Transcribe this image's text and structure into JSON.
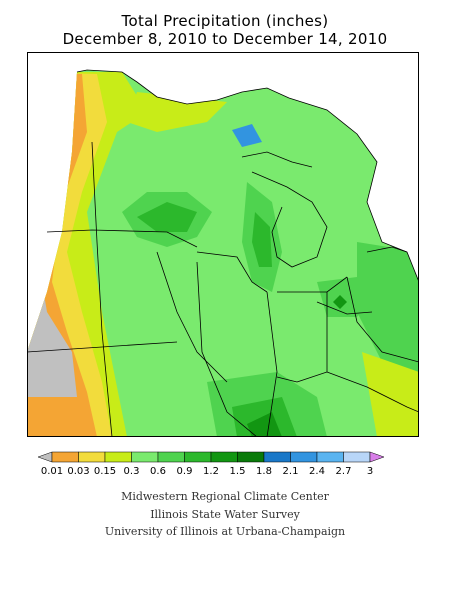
{
  "title": "Total Precipitation (inches)",
  "subtitle": "December 8, 2010 to December 14, 2010",
  "legend": {
    "bins": [
      {
        "label": "0.01",
        "color": "#c0c0c0"
      },
      {
        "label": "0.03",
        "color": "#f4a534"
      },
      {
        "label": "0.15",
        "color": "#f2dc3c"
      },
      {
        "label": "0.3",
        "color": "#c8ec18"
      },
      {
        "label": "0.6",
        "color": "#7aea6e"
      },
      {
        "label": "0.9",
        "color": "#4fd34f"
      },
      {
        "label": "1.2",
        "color": "#2cb82c"
      },
      {
        "label": "1.5",
        "color": "#129612"
      },
      {
        "label": "1.8",
        "color": "#0a7a0a"
      },
      {
        "label": "2.1",
        "color": "#1a78c8"
      },
      {
        "label": "2.4",
        "color": "#3294e0"
      },
      {
        "label": "2.7",
        "color": "#5ab4f0"
      },
      {
        "label": "3",
        "color": "#b8d6f8"
      }
    ],
    "over_color": "#d87ee8",
    "under_color": "#c0c0c0"
  },
  "credits": [
    "Midwestern Regional Climate Center",
    "Illinois State Water Survey",
    "University of Illinois at Urbana-Champaign"
  ]
}
